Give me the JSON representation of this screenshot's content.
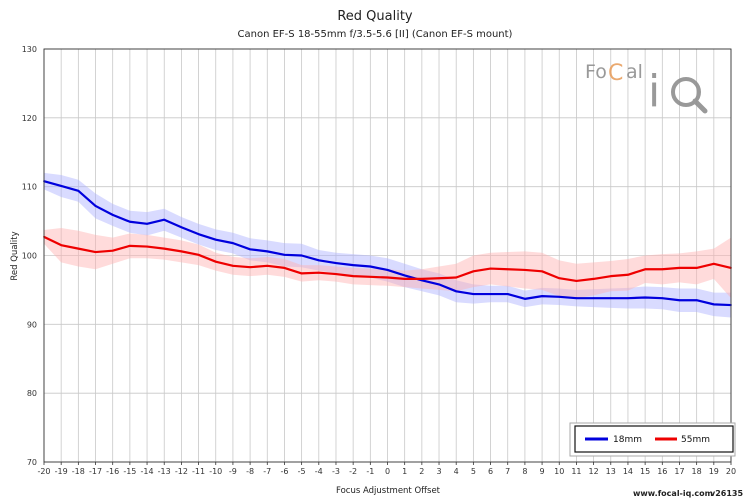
{
  "chart_data": {
    "type": "line",
    "title": "Red Quality",
    "subtitle": "Canon EF-S 18-55mm f/3.5-5.6 [II] (Canon EF-S mount)",
    "xlabel": "Focus Adjustment Offset",
    "ylabel": "Red Quality",
    "x": [
      -20,
      -19,
      -18,
      -17,
      -16,
      -15,
      -14,
      -13,
      -12,
      -11,
      -10,
      -9,
      -8,
      -7,
      -6,
      -5,
      -4,
      -3,
      -2,
      -1,
      0,
      1,
      2,
      3,
      4,
      5,
      6,
      7,
      8,
      9,
      10,
      11,
      12,
      13,
      14,
      15,
      16,
      17,
      18,
      19,
      20
    ],
    "xlim": [
      -20,
      20
    ],
    "ylim": [
      70,
      130
    ],
    "yticks": [
      70,
      80,
      90,
      100,
      110,
      120,
      130
    ],
    "grid": true,
    "legend_position": "bottom-right",
    "series": [
      {
        "name": "18mm",
        "color": "#0000dd",
        "band_color": "#aab0ff",
        "values": [
          110.8,
          110.1,
          109.4,
          107.2,
          105.9,
          104.9,
          104.6,
          105.2,
          104.1,
          103.1,
          102.3,
          101.8,
          100.9,
          100.6,
          100.1,
          100.0,
          99.3,
          98.9,
          98.6,
          98.4,
          97.9,
          97.1,
          96.4,
          95.8,
          94.8,
          94.4,
          94.4,
          94.4,
          93.7,
          94.1,
          94.0,
          93.8,
          93.8,
          93.8,
          93.8,
          93.9,
          93.8,
          93.5,
          93.5,
          92.9,
          92.8
        ],
        "upper": [
          112.0,
          111.7,
          111.0,
          109.0,
          107.5,
          106.5,
          106.3,
          106.8,
          105.6,
          104.6,
          103.8,
          103.3,
          102.5,
          102.2,
          101.8,
          101.7,
          100.8,
          100.4,
          100.2,
          100.0,
          99.6,
          98.8,
          98.0,
          97.4,
          96.4,
          95.8,
          95.6,
          95.6,
          94.9,
          95.3,
          95.2,
          95.0,
          95.1,
          95.2,
          95.3,
          95.5,
          95.4,
          95.2,
          95.2,
          94.6,
          94.6
        ],
        "lower": [
          109.6,
          108.5,
          107.8,
          105.4,
          104.3,
          103.3,
          102.9,
          103.6,
          102.6,
          101.6,
          100.8,
          100.3,
          99.3,
          99.0,
          98.4,
          98.3,
          97.8,
          97.4,
          97.0,
          96.8,
          96.2,
          95.4,
          94.8,
          94.2,
          93.2,
          93.0,
          93.2,
          93.2,
          92.5,
          92.9,
          92.8,
          92.6,
          92.5,
          92.4,
          92.3,
          92.3,
          92.2,
          91.8,
          91.8,
          91.2,
          91.0
        ]
      },
      {
        "name": "55mm",
        "color": "#ee0000",
        "band_color": "#ffb0b0",
        "values": [
          102.7,
          101.5,
          101.0,
          100.5,
          100.7,
          101.4,
          101.3,
          101.0,
          100.6,
          100.1,
          99.1,
          98.5,
          98.3,
          98.5,
          98.2,
          97.4,
          97.5,
          97.3,
          97.0,
          96.9,
          96.8,
          96.6,
          96.6,
          96.7,
          96.8,
          97.7,
          98.1,
          98.0,
          97.9,
          97.7,
          96.7,
          96.3,
          96.6,
          97.0,
          97.2,
          98.0,
          98.0,
          98.2,
          98.2,
          98.8,
          98.2
        ],
        "upper": [
          103.7,
          104.0,
          103.6,
          103.0,
          102.6,
          103.2,
          103.0,
          102.6,
          102.2,
          101.6,
          100.4,
          99.8,
          99.6,
          99.8,
          99.5,
          98.6,
          98.6,
          98.4,
          98.2,
          98.1,
          98.0,
          97.8,
          98.0,
          98.4,
          98.8,
          100.0,
          100.4,
          100.5,
          100.6,
          100.4,
          99.3,
          98.8,
          99.0,
          99.2,
          99.5,
          100.0,
          100.2,
          100.3,
          100.6,
          101.0,
          102.6
        ],
        "lower": [
          101.7,
          99.0,
          98.4,
          98.0,
          98.8,
          99.6,
          99.6,
          99.4,
          99.0,
          98.6,
          97.8,
          97.2,
          97.0,
          97.2,
          96.9,
          96.2,
          96.4,
          96.2,
          95.8,
          95.7,
          95.6,
          95.4,
          95.2,
          95.0,
          94.8,
          95.4,
          95.8,
          95.5,
          95.2,
          95.0,
          94.1,
          93.8,
          94.2,
          94.8,
          94.9,
          96.0,
          95.8,
          96.1,
          95.8,
          96.6,
          93.8
        ]
      }
    ]
  },
  "logo": {
    "brand_text_left": "Fo",
    "brand_text_c": "C",
    "brand_text_right": "al",
    "brand_i": "i",
    "brand_q": "Q"
  },
  "footer": {
    "site": "www.focal-iq.com",
    "version": "v26135"
  },
  "colors": {
    "grid": "#c8c8c8",
    "axis": "#333333",
    "logo_accent": "#e8a060"
  }
}
